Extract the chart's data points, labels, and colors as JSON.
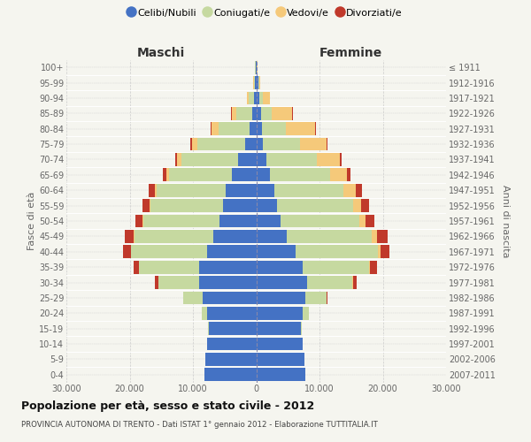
{
  "age_groups": [
    "0-4",
    "5-9",
    "10-14",
    "15-19",
    "20-24",
    "25-29",
    "30-34",
    "35-39",
    "40-44",
    "45-49",
    "50-54",
    "55-59",
    "60-64",
    "65-69",
    "70-74",
    "75-79",
    "80-84",
    "85-89",
    "90-94",
    "95-99",
    "100+"
  ],
  "birth_years": [
    "2007-2011",
    "2002-2006",
    "1997-2001",
    "1992-1996",
    "1987-1991",
    "1982-1986",
    "1977-1981",
    "1972-1976",
    "1967-1971",
    "1962-1966",
    "1957-1961",
    "1952-1956",
    "1947-1951",
    "1942-1946",
    "1937-1941",
    "1932-1936",
    "1927-1931",
    "1922-1926",
    "1917-1921",
    "1912-1916",
    "≤ 1911"
  ],
  "maschi_celibe": [
    8200,
    8000,
    7800,
    7500,
    7800,
    8500,
    9000,
    9000,
    7800,
    6800,
    5800,
    5200,
    4800,
    3800,
    2800,
    1800,
    1000,
    600,
    350,
    200,
    100
  ],
  "maschi_coniugato": [
    0,
    0,
    0,
    100,
    800,
    3000,
    6500,
    9500,
    12000,
    12500,
    12000,
    11500,
    11000,
    10000,
    9000,
    7500,
    5000,
    2500,
    800,
    180,
    50
  ],
  "maschi_vedovo": [
    0,
    0,
    0,
    0,
    3,
    8,
    20,
    40,
    60,
    80,
    130,
    180,
    280,
    450,
    650,
    900,
    1100,
    800,
    350,
    80,
    20
  ],
  "maschi_divorziato": [
    0,
    0,
    0,
    3,
    25,
    90,
    450,
    850,
    1150,
    1350,
    1150,
    1050,
    850,
    550,
    280,
    150,
    100,
    50,
    10,
    0,
    0
  ],
  "femmine_nubile": [
    7800,
    7600,
    7400,
    7100,
    7400,
    7800,
    8000,
    7300,
    6200,
    4800,
    3800,
    3300,
    2800,
    2200,
    1600,
    1100,
    900,
    700,
    500,
    300,
    100
  ],
  "femmine_coniugata": [
    0,
    0,
    0,
    120,
    900,
    3300,
    7200,
    10500,
    13000,
    13500,
    12500,
    12000,
    11000,
    9500,
    8000,
    5800,
    3800,
    1800,
    550,
    120,
    30
  ],
  "femmine_vedova": [
    0,
    0,
    0,
    5,
    12,
    35,
    90,
    230,
    450,
    750,
    950,
    1300,
    1900,
    2600,
    3600,
    4200,
    4600,
    3200,
    1100,
    250,
    40
  ],
  "femmine_divorziata": [
    0,
    0,
    0,
    8,
    45,
    140,
    550,
    1050,
    1450,
    1750,
    1450,
    1250,
    950,
    580,
    320,
    200,
    100,
    50,
    10,
    0,
    0
  ],
  "color_celibe": "#4472C4",
  "color_coniugato": "#C6D9A0",
  "color_vedovo": "#F5C97A",
  "color_divorziato": "#C0392B",
  "xlim": 30000,
  "title": "Popolazione per età, sesso e stato civile - 2012",
  "subtitle": "PROVINCIA AUTONOMA DI TRENTO - Dati ISTAT 1° gennaio 2012 - Elaborazione TUTTITALIA.IT",
  "ylabel_left": "Fasce di età",
  "ylabel_right": "Anni di nascita",
  "label_maschi": "Maschi",
  "label_femmine": "Femmine",
  "bg_color": "#f5f5ef",
  "grid_color": "#cccccc",
  "legend_labels": [
    "Celibi/Nubili",
    "Coniugati/e",
    "Vedovi/e",
    "Divorziati/e"
  ],
  "tick_labels": [
    "30.000",
    "20.000",
    "10.000",
    "0",
    "10.000",
    "20.000",
    "30.000"
  ]
}
